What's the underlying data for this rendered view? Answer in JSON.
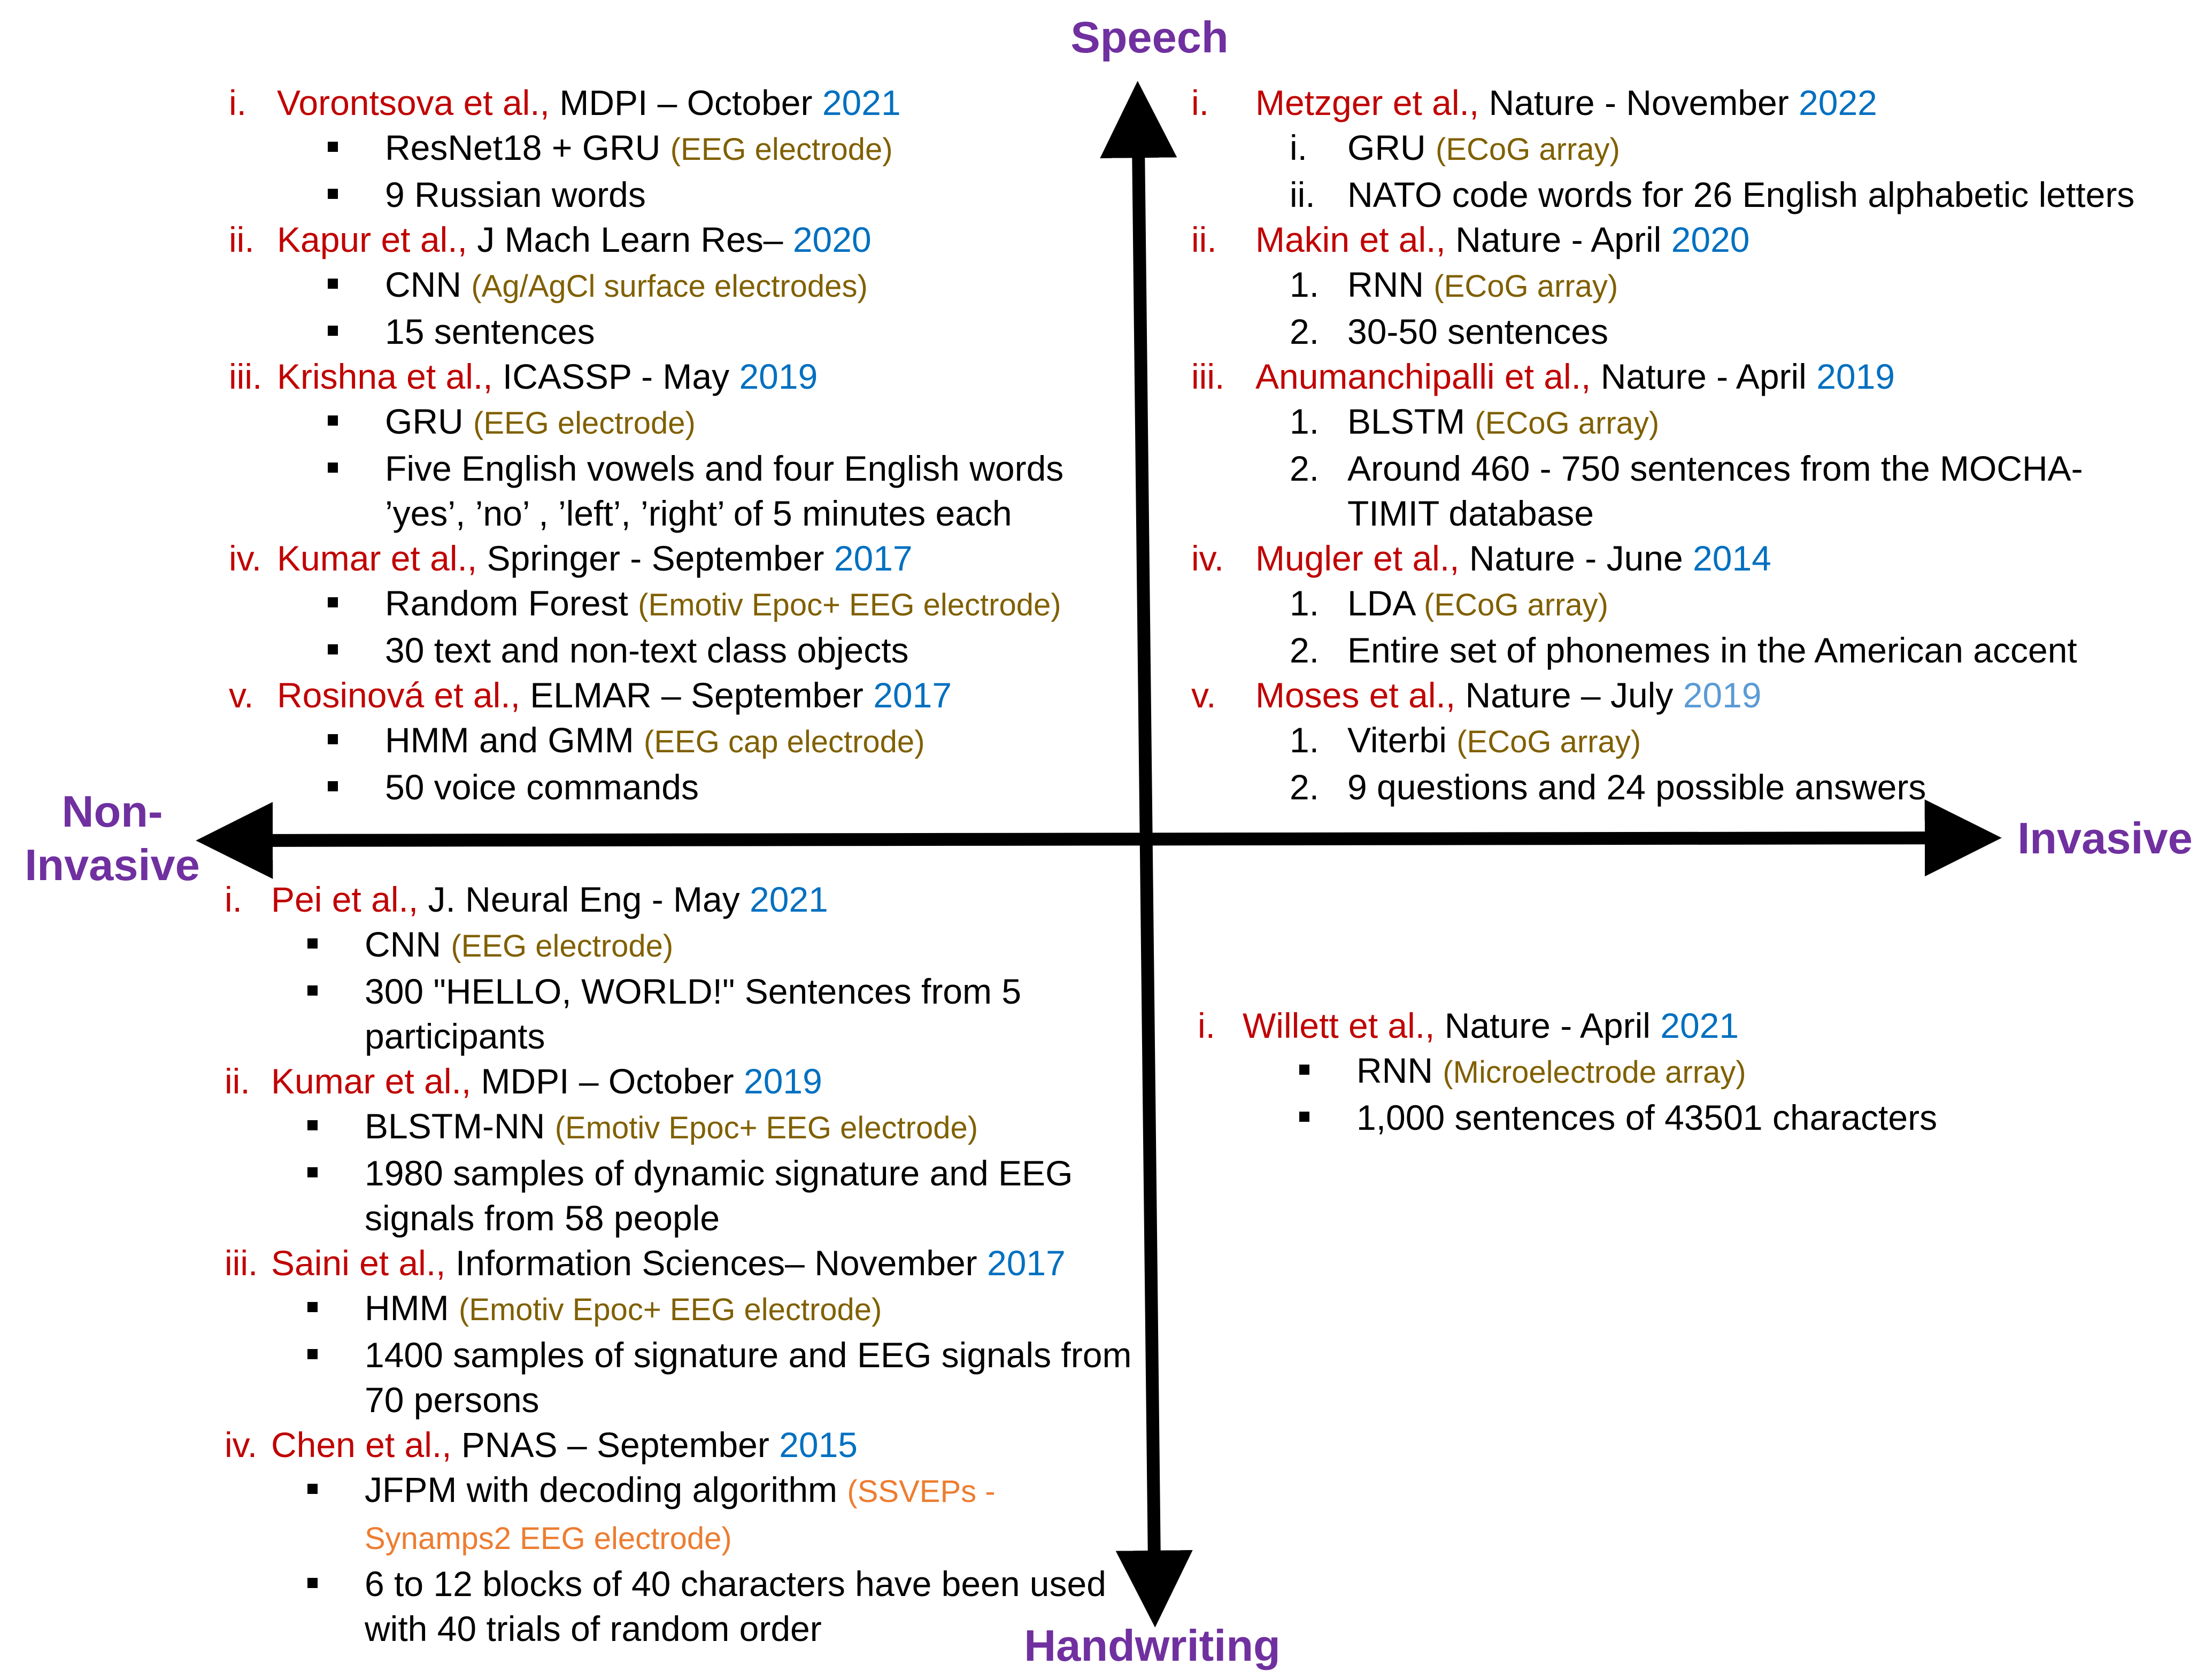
{
  "axes": {
    "top": "Speech",
    "bottom": "Handwriting",
    "left": [
      "Non-",
      "Invasive"
    ],
    "right": "Invasive"
  },
  "colors": {
    "axis_label": "#7030a0",
    "author": "#c00000",
    "year": "#0070c0",
    "year_light": "#5b9bd5",
    "electrode": "#806000",
    "electrode_alt": "#ed7d31"
  },
  "quadrants": {
    "top_left": [
      {
        "num": "i.",
        "author": "Vorontsova et al.,",
        "venue": " MDPI – October ",
        "year": "2021",
        "items": [
          {
            "method": "ResNet18 + GRU ",
            "electrode": "(EEG electrode)"
          },
          {
            "text": "9  Russian words"
          }
        ]
      },
      {
        "num": "ii.",
        "author": "Kapur et al.,",
        "venue": " J Mach Learn Res– ",
        "year": "2020",
        "items": [
          {
            "method": "CNN ",
            "electrode": "(Ag/AgCl surface electrodes)"
          },
          {
            "text": "15 sentences"
          }
        ]
      },
      {
        "num": "iii.",
        "author": "Krishna et al.,",
        "venue": " ICASSP  -  May ",
        "year": "2019",
        "items": [
          {
            "method": "GRU ",
            "electrode": "(EEG electrode)"
          },
          {
            "text": "Five English vowels and four English words ’yes’, ’no’ , ’left’, ’right’ of 5 minutes each"
          }
        ]
      },
      {
        "num": "iv.",
        "author": "Kumar et al.,",
        "venue": " Springer -  September ",
        "year": "2017",
        "items": [
          {
            "method": "Random Forest ",
            "electrode": "(Emotiv Epoc+ EEG electrode)"
          },
          {
            "text": "30 text and non-text class objects"
          }
        ]
      },
      {
        "num": "v.",
        "author": "Rosinová et al.,",
        "venue": " ELMAR  – September ",
        "year": "2017",
        "items": [
          {
            "method": "HMM and GMM ",
            "electrode": "(EEG  cap electrode)"
          },
          {
            "text": "50 voice commands"
          }
        ]
      }
    ],
    "top_right": [
      {
        "num": "i.",
        "author": "Metzger et al.,",
        "venue": " Nature -  November ",
        "year": "2022",
        "items": [
          {
            "marker": "i.",
            "method": "GRU ",
            "electrode": "(ECoG array)"
          },
          {
            "marker": "ii.",
            "text": "NATO code words for 26 English alphabetic letters"
          }
        ]
      },
      {
        "num": "ii.",
        "author": "Makin et al.,",
        "venue": " Nature -  April ",
        "year": "2020",
        "items": [
          {
            "marker": "1.",
            "method": "RNN ",
            "electrode": "(ECoG array)"
          },
          {
            "marker": "2.",
            "text": "30-50 sentences"
          }
        ]
      },
      {
        "num": "iii.",
        "author": "Anumanchipalli et al.,",
        "venue": " Nature -  April ",
        "year": "2019",
        "items": [
          {
            "marker": "1.",
            "method": "BLSTM ",
            "electrode": "(ECoG array)"
          },
          {
            "marker": "2.",
            "text": " Around 460 - 750 sentences from the MOCHA-TIMIT database"
          }
        ]
      },
      {
        "num": "iv.",
        "author": "Mugler et al.,",
        "venue": " Nature -  June ",
        "year": "2014",
        "items": [
          {
            "marker": "1.",
            "method": "LDA ",
            "electrode": "(ECoG array)"
          },
          {
            "marker": "2.",
            "text": "Entire set of phonemes in the American accent"
          }
        ]
      },
      {
        "num": "v.",
        "author": "Moses et al.,",
        "venue": " Nature – July ",
        "year": "2019",
        "items": [
          {
            "marker": "1.",
            "method": "Viterbi ",
            "electrode": "(ECoG array)"
          },
          {
            "marker": "2.",
            "text": "9 questions and 24 possible answers"
          }
        ]
      }
    ],
    "bottom_left": [
      {
        "num": "i.",
        "author": "Pei et al.,",
        "venue": " J. Neural Eng - May ",
        "year": "2021",
        "items": [
          {
            "method": "CNN ",
            "electrode": "(EEG electrode)"
          },
          {
            "text": "300 \"HELLO, WORLD!\" Sentences from 5 participants"
          }
        ]
      },
      {
        "num": "ii.",
        "author": "Kumar et al.,",
        "venue": "  MDPI – October ",
        "year": "2019",
        "items": [
          {
            "method": "BLSTM-NN ",
            "electrode": "(Emotiv Epoc+ EEG electrode)"
          },
          {
            "text": "1980 samples of dynamic signature and EEG signals from 58 people"
          }
        ]
      },
      {
        "num": "iii.",
        "author": "Saini et al.,",
        "venue": " Information Sciences– November ",
        "year": "2017",
        "items": [
          {
            "method": "HMM ",
            "electrode": "(Emotiv Epoc+ EEG electrode)"
          },
          {
            "text": "1400 samples of signature and EEG signals from 70 persons"
          }
        ]
      },
      {
        "num": "iv.",
        "author": "Chen et al.,",
        "venue": " PNAS – September ",
        "year": "2015",
        "items": [
          {
            "method": "JFPM with decoding algorithm ",
            "electrode": "(SSVEPs - Synamps2 EEG electrode)"
          },
          {
            "text": "6 to 12 blocks of 40 characters have been used with 40 trials of random order"
          }
        ]
      }
    ],
    "bottom_right": [
      {
        "num": "i.",
        "author": "Willett et al.,",
        "venue": " Nature -  April ",
        "year": "2021",
        "items": [
          {
            "method": "RNN ",
            "electrode": "(Microelectrode array)"
          },
          {
            "text": "1,000 sentences of 43501 characters"
          }
        ]
      }
    ]
  }
}
